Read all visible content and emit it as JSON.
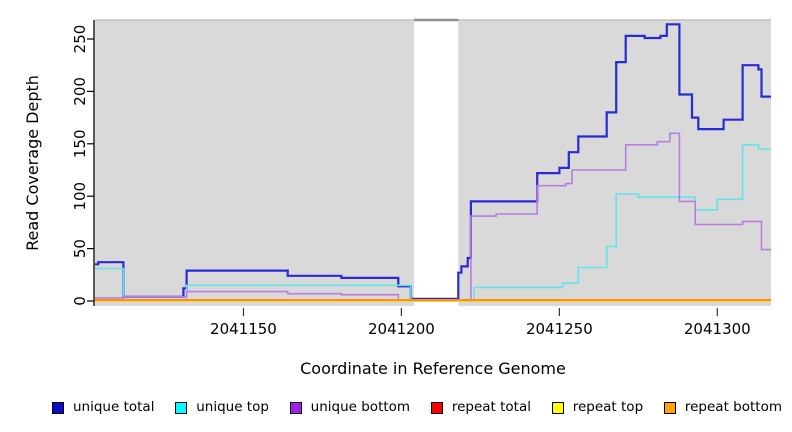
{
  "chart_data": {
    "type": "line",
    "line_style": "step",
    "title": "",
    "xlabel": "Coordinate in Reference Genome",
    "ylabel": "Read Coverage Depth",
    "xlim": [
      2041103,
      2041317
    ],
    "ylim": [
      0,
      268
    ],
    "x_ticks": [
      2041150,
      2041200,
      2041250,
      2041300
    ],
    "y_ticks": [
      0,
      50,
      100,
      150,
      200,
      250
    ],
    "grid": false,
    "plot_bg": "#d9d9d9",
    "page_bg": "#ffffff",
    "gap_region": {
      "x_start": 2041204,
      "x_end": 2041218,
      "color": "#ffffff"
    },
    "legend_position": "bottom",
    "series": [
      {
        "name": "unique total",
        "legend_color": "#0b0bcc",
        "line_color": "#2a2ad4",
        "line_width": 2.2,
        "steps": [
          [
            2041103,
            35
          ],
          [
            2041104,
            37
          ],
          [
            2041112,
            4
          ],
          [
            2041131,
            12
          ],
          [
            2041132,
            29
          ],
          [
            2041164,
            24
          ],
          [
            2041181,
            22
          ],
          [
            2041199,
            14
          ],
          [
            2041203,
            2
          ],
          [
            2041218,
            27
          ],
          [
            2041219,
            33
          ],
          [
            2041221,
            41
          ],
          [
            2041222,
            95
          ],
          [
            2041243,
            122
          ],
          [
            2041250,
            127
          ],
          [
            2041253,
            142
          ],
          [
            2041256,
            157
          ],
          [
            2041265,
            180
          ],
          [
            2041268,
            228
          ],
          [
            2041271,
            253
          ],
          [
            2041277,
            251
          ],
          [
            2041282,
            253
          ],
          [
            2041284,
            264
          ],
          [
            2041288,
            197
          ],
          [
            2041292,
            175
          ],
          [
            2041294,
            164
          ],
          [
            2041302,
            173
          ],
          [
            2041308,
            225
          ],
          [
            2041313,
            221
          ],
          [
            2041314,
            195
          ]
        ]
      },
      {
        "name": "unique top",
        "legend_color": "#00ffff",
        "line_color": "#63e3ea",
        "line_width": 1.6,
        "steps": [
          [
            2041103,
            31
          ],
          [
            2041112,
            1
          ],
          [
            2041132,
            15
          ],
          [
            2041203,
            0
          ],
          [
            2041223,
            13
          ],
          [
            2041251,
            17
          ],
          [
            2041256,
            32
          ],
          [
            2041265,
            52
          ],
          [
            2041268,
            102
          ],
          [
            2041275,
            99
          ],
          [
            2041293,
            87
          ],
          [
            2041300,
            97
          ],
          [
            2041308,
            149
          ],
          [
            2041313,
            145
          ]
        ]
      },
      {
        "name": "unique bottom",
        "legend_color": "#a020f0",
        "line_color": "#b87ce2",
        "line_width": 1.6,
        "steps": [
          [
            2041103,
            3
          ],
          [
            2041112,
            4
          ],
          [
            2041132,
            9
          ],
          [
            2041164,
            7
          ],
          [
            2041181,
            6
          ],
          [
            2041199,
            0
          ],
          [
            2041222,
            81
          ],
          [
            2041230,
            83
          ],
          [
            2041243,
            110
          ],
          [
            2041252,
            112
          ],
          [
            2041254,
            125
          ],
          [
            2041271,
            149
          ],
          [
            2041281,
            152
          ],
          [
            2041285,
            160
          ],
          [
            2041288,
            95
          ],
          [
            2041293,
            73
          ],
          [
            2041308,
            76
          ],
          [
            2041314,
            49
          ]
        ]
      },
      {
        "name": "repeat total",
        "legend_color": "#ff0000",
        "line_color": "#e00000",
        "line_width": 1.5,
        "steps": [
          [
            2041103,
            0
          ]
        ]
      },
      {
        "name": "repeat top",
        "legend_color": "#ffff00",
        "line_color": "#ffff00",
        "line_width": 1.5,
        "steps": [
          [
            2041103,
            0
          ]
        ]
      },
      {
        "name": "repeat bottom",
        "legend_color": "#ffa500",
        "line_color": "#ff8c1c",
        "line_width": 2,
        "steps": [
          [
            2041103,
            1
          ]
        ]
      }
    ]
  }
}
